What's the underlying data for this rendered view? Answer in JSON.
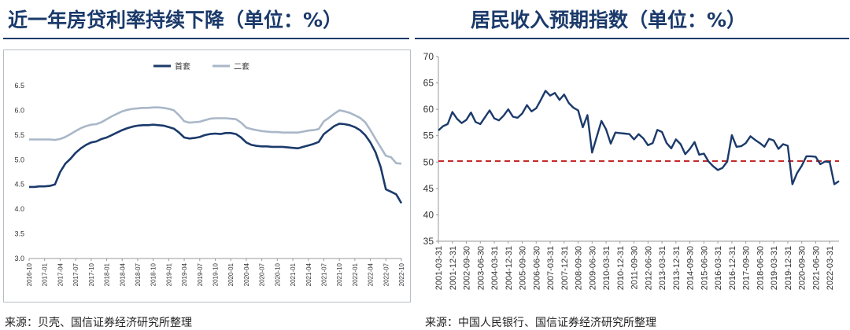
{
  "panels": {
    "left": {
      "title": "近一年房贷利率持续下降（单位：%）",
      "source": "来源：贝壳、国信证券经济研究所整理"
    },
    "right": {
      "title": "居民收入预期指数（单位：%）",
      "source": "来源：中国人民银行、国信证券经济研究所整理"
    }
  },
  "colors": {
    "first_home": "#1b3a6b",
    "second_home": "#a9b7c8",
    "reference": "#c62828",
    "title": "#1b3a6b"
  },
  "chart_data": [
    {
      "type": "line",
      "title": "近一年房贷利率持续下降（单位：%）",
      "xlabel": "",
      "ylabel": "",
      "ylim": [
        3.0,
        6.5
      ],
      "yticks": [
        "3.0",
        "3.5",
        "4.0",
        "4.5",
        "5.0",
        "5.5",
        "6.0",
        "6.5"
      ],
      "legend_position": "top-center",
      "x": [
        "2016-10",
        "2016-11",
        "2016-12",
        "2017-01",
        "2017-02",
        "2017-03",
        "2017-04",
        "2017-05",
        "2017-06",
        "2017-07",
        "2017-08",
        "2017-09",
        "2017-10",
        "2017-11",
        "2017-12",
        "2018-01",
        "2018-02",
        "2018-03",
        "2018-04",
        "2018-05",
        "2018-06",
        "2018-07",
        "2018-08",
        "2018-09",
        "2018-10",
        "2018-11",
        "2018-12",
        "2019-01",
        "2019-02",
        "2019-03",
        "2019-04",
        "2019-05",
        "2019-06",
        "2019-07",
        "2019-08",
        "2019-09",
        "2019-10",
        "2019-11",
        "2019-12",
        "2020-01",
        "2020-02",
        "2020-03",
        "2020-04",
        "2020-05",
        "2020-06",
        "2020-07",
        "2020-08",
        "2020-09",
        "2020-10",
        "2020-11",
        "2020-12",
        "2021-01",
        "2021-02",
        "2021-03",
        "2021-04",
        "2021-05",
        "2021-06",
        "2021-07",
        "2021-08",
        "2021-09",
        "2021-10",
        "2021-11",
        "2021-12",
        "2022-01",
        "2022-02",
        "2022-03",
        "2022-04",
        "2022-05",
        "2022-06",
        "2022-07",
        "2022-08",
        "2022-09",
        "2022-10"
      ],
      "xtick_labels": [
        "2016-10",
        "2017-01",
        "2017-04",
        "2017-07",
        "2017-10",
        "2018-01",
        "2018-04",
        "2018-07",
        "2018-10",
        "2019-01",
        "2019-04",
        "2019-07",
        "2019-10",
        "2020-01",
        "2020-04",
        "2020-07",
        "2020-10",
        "2021-01",
        "2021-04",
        "2021-07",
        "2021-10",
        "2022-01",
        "2022-04",
        "2022-07",
        "2022-10"
      ],
      "series": [
        {
          "name": "首套",
          "color": "#1b3a6b",
          "values": [
            4.45,
            4.45,
            4.46,
            4.46,
            4.47,
            4.5,
            4.75,
            4.92,
            5.02,
            5.14,
            5.23,
            5.3,
            5.35,
            5.37,
            5.42,
            5.45,
            5.5,
            5.55,
            5.6,
            5.64,
            5.67,
            5.69,
            5.7,
            5.7,
            5.71,
            5.7,
            5.69,
            5.66,
            5.63,
            5.55,
            5.45,
            5.43,
            5.44,
            5.46,
            5.5,
            5.52,
            5.53,
            5.52,
            5.54,
            5.54,
            5.52,
            5.45,
            5.35,
            5.3,
            5.28,
            5.27,
            5.27,
            5.26,
            5.26,
            5.26,
            5.25,
            5.24,
            5.23,
            5.26,
            5.29,
            5.32,
            5.36,
            5.52,
            5.6,
            5.68,
            5.73,
            5.72,
            5.7,
            5.66,
            5.6,
            5.5,
            5.35,
            5.15,
            4.85,
            4.4,
            4.35,
            4.3,
            4.12
          ]
        },
        {
          "name": "二套",
          "color": "#a9b7c8",
          "values": [
            5.41,
            5.41,
            5.41,
            5.41,
            5.41,
            5.4,
            5.42,
            5.46,
            5.52,
            5.58,
            5.64,
            5.68,
            5.71,
            5.72,
            5.76,
            5.82,
            5.88,
            5.93,
            5.98,
            6.01,
            6.03,
            6.04,
            6.05,
            6.05,
            6.06,
            6.06,
            6.05,
            6.03,
            6.0,
            5.9,
            5.78,
            5.75,
            5.76,
            5.77,
            5.8,
            5.83,
            5.84,
            5.84,
            5.84,
            5.83,
            5.82,
            5.75,
            5.65,
            5.62,
            5.6,
            5.58,
            5.57,
            5.56,
            5.56,
            5.55,
            5.55,
            5.55,
            5.55,
            5.57,
            5.59,
            5.6,
            5.62,
            5.78,
            5.85,
            5.93,
            6.0,
            5.98,
            5.95,
            5.9,
            5.85,
            5.76,
            5.6,
            5.42,
            5.25,
            5.08,
            5.05,
            4.93,
            4.92
          ]
        }
      ]
    },
    {
      "type": "line",
      "title": "居民收入预期指数（单位：%）",
      "xlabel": "",
      "ylabel": "",
      "ylim": [
        35,
        70
      ],
      "yticks": [
        "70",
        "65",
        "60",
        "55",
        "50",
        "45",
        "40",
        "35"
      ],
      "reference_line": {
        "y": 50.2,
        "style": "dashed",
        "color": "#c62828"
      },
      "x_start": "2001-03-31",
      "x_end": "2022-06-30",
      "xtick_labels": [
        "2001-03-31",
        "2001-12-31",
        "2002-09-30",
        "2003-06-30",
        "2004-03-31",
        "2004-12-31",
        "2005-09-30",
        "2006-06-30",
        "2007-03-31",
        "2007-12-31",
        "2008-09-30",
        "2009-06-30",
        "2010-03-31",
        "2010-12-31",
        "2011-09-30",
        "2012-06-30",
        "2013-03-31",
        "2013-12-31",
        "2014-09-30",
        "2015-06-30",
        "2016-03-31",
        "2016-12-31",
        "2017-09-30",
        "2018-06-30",
        "2019-03-31",
        "2019-12-31",
        "2020-09-30",
        "2021-06-30",
        "2022-03-31"
      ],
      "series": [
        {
          "name": "",
          "color": "#1b3a6b",
          "values": [
            56.0,
            56.8,
            57.2,
            59.5,
            58.2,
            57.4,
            58.0,
            59.4,
            57.6,
            57.2,
            58.5,
            59.8,
            58.3,
            57.9,
            58.8,
            60.0,
            58.6,
            58.4,
            59.2,
            60.8,
            59.6,
            60.2,
            61.8,
            63.5,
            62.6,
            63.1,
            61.8,
            62.8,
            61.2,
            60.3,
            59.8,
            56.6,
            58.9,
            51.8,
            54.8,
            57.8,
            56.2,
            53.5,
            55.6,
            55.5,
            55.4,
            55.3,
            54.3,
            55.3,
            54.5,
            53.2,
            53.6,
            56.1,
            55.7,
            53.6,
            52.6,
            54.3,
            53.4,
            51.5,
            52.5,
            53.8,
            51.4,
            51.6,
            50.1,
            49.2,
            48.5,
            48.9,
            50.1,
            55.1,
            52.9,
            53.0,
            53.6,
            54.9,
            54.2,
            53.6,
            52.9,
            54.4,
            54.1,
            52.5,
            53.4,
            53.1,
            45.8,
            47.9,
            49.3,
            51.1,
            51.1,
            51.0,
            49.6,
            50.1,
            50.0,
            45.8,
            46.4
          ]
        }
      ]
    }
  ]
}
